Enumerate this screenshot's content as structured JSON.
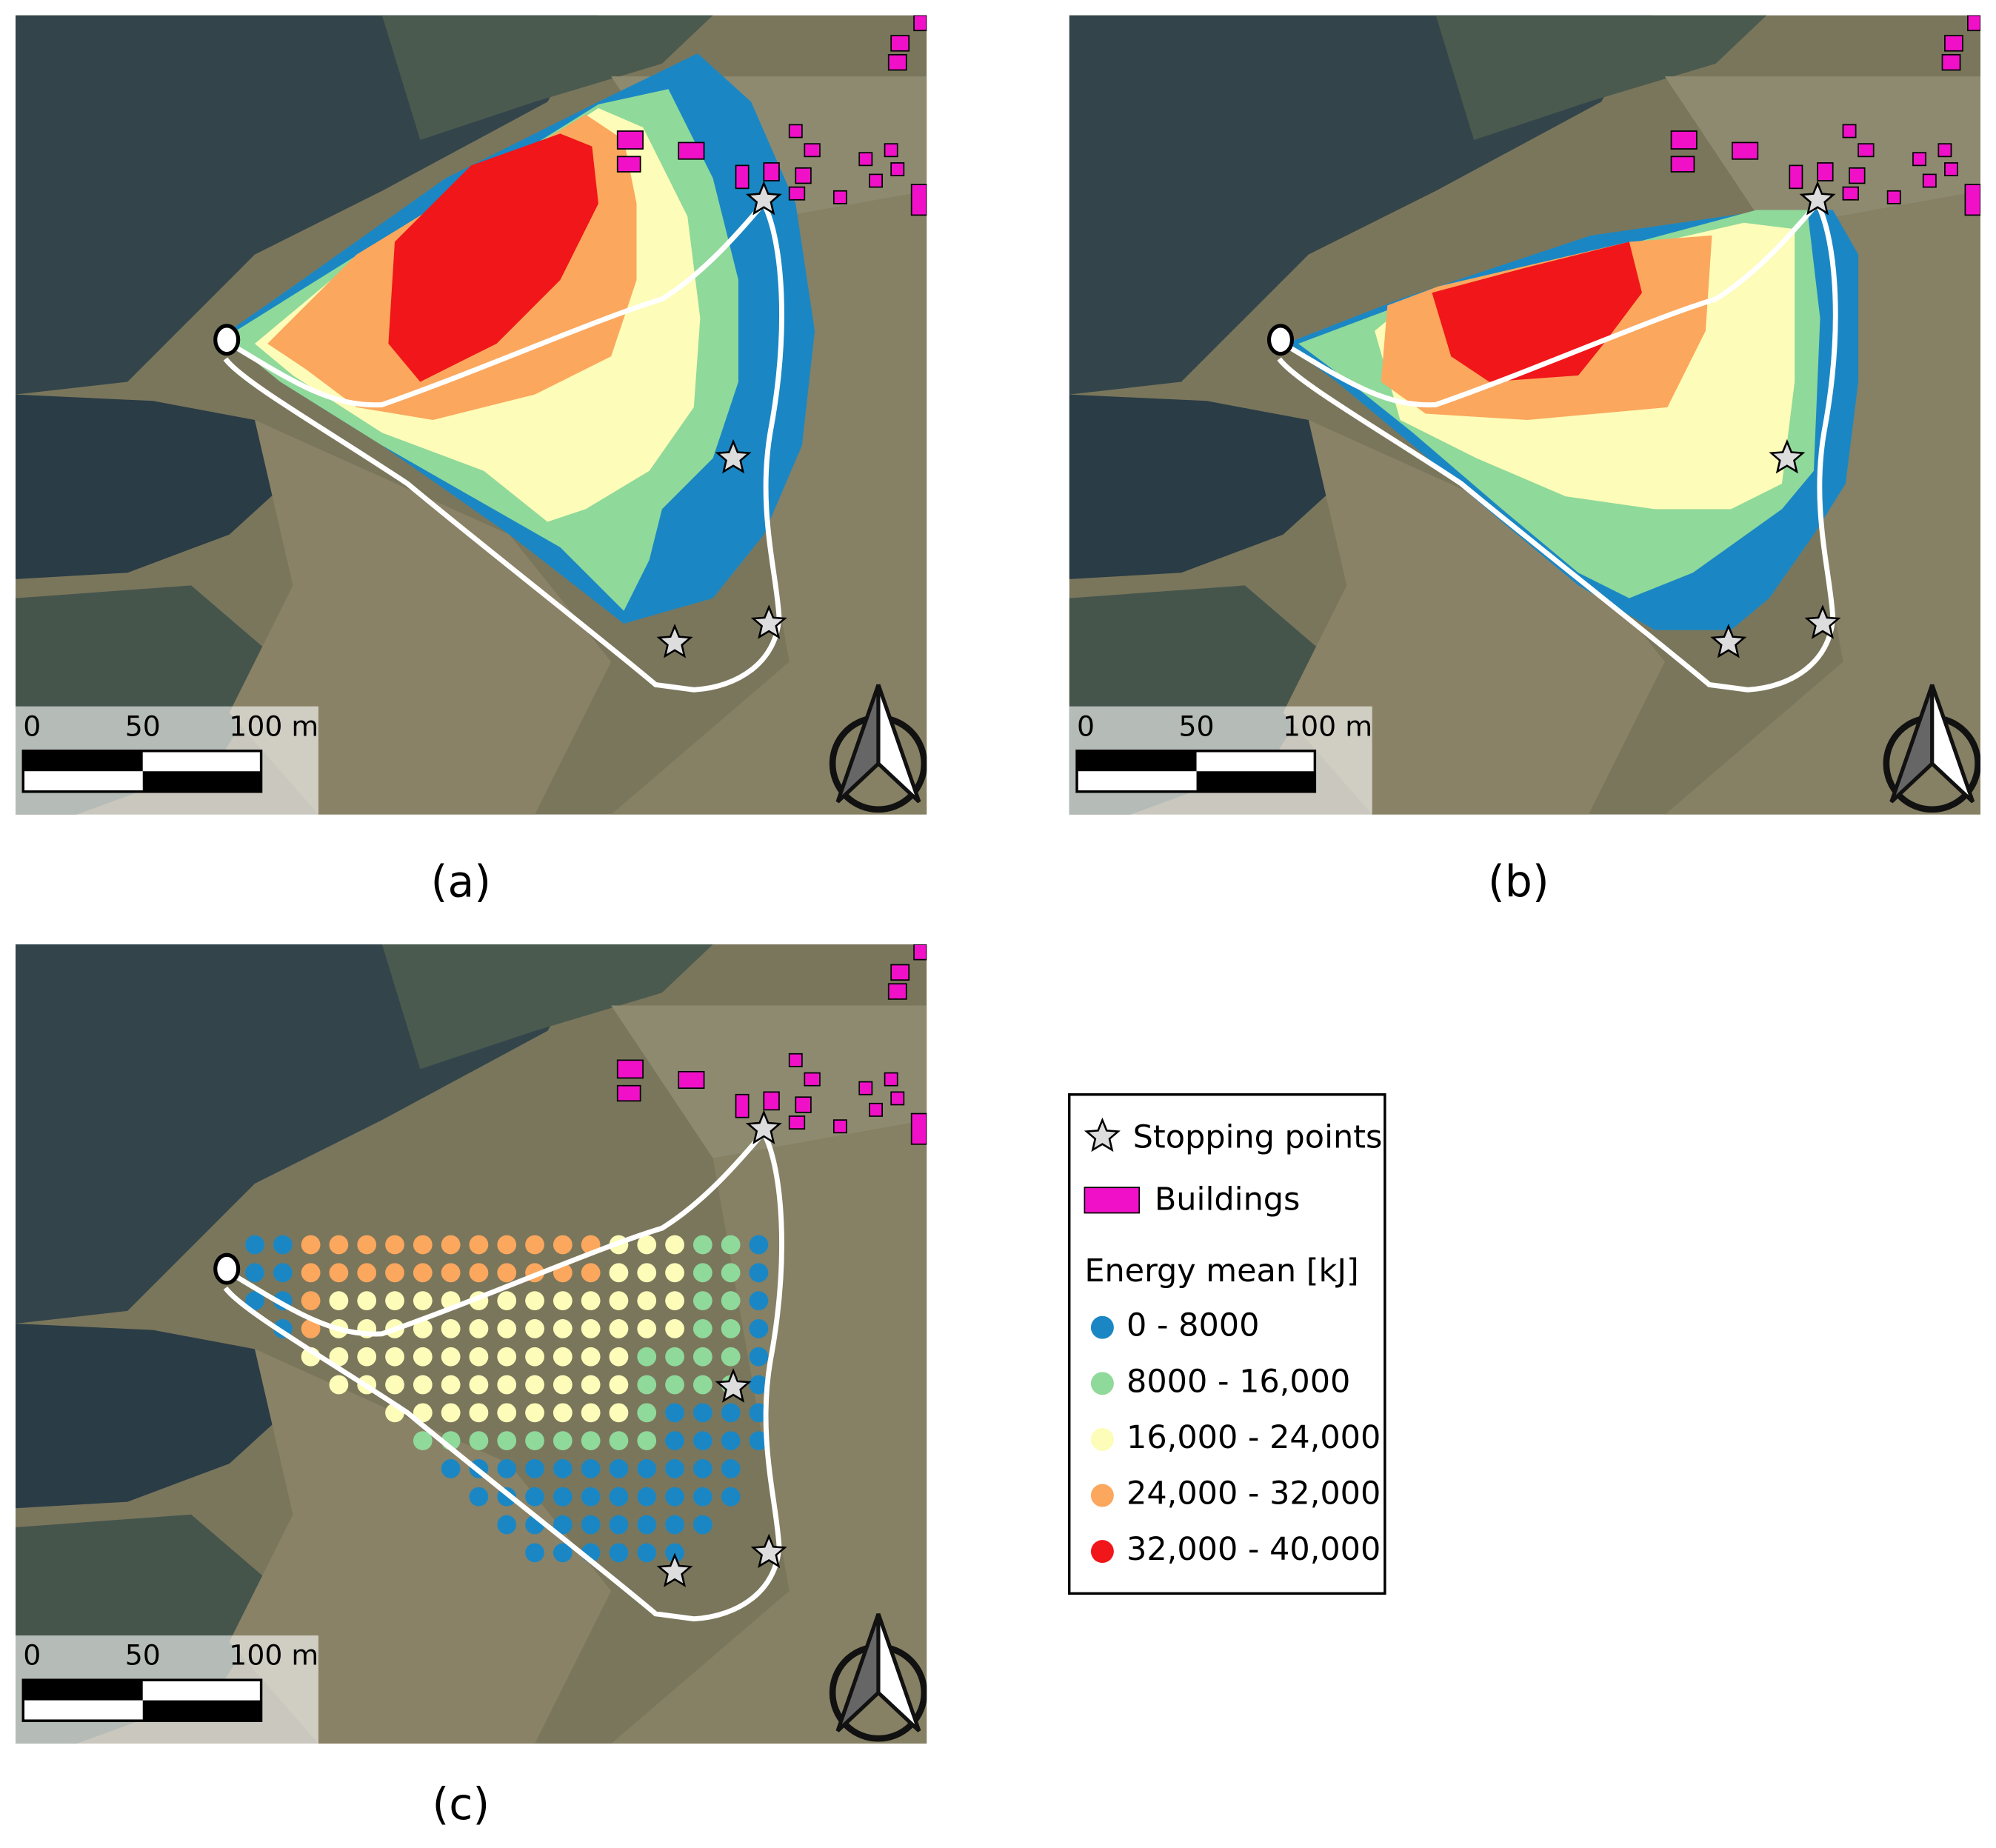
{
  "panels": [
    {
      "label": "(a)"
    },
    {
      "label": "(b)"
    },
    {
      "label": "(c)"
    }
  ],
  "scale_bar": {
    "ticks": [
      "0",
      "50",
      "100 m"
    ]
  },
  "legend": {
    "stopping_points": "Stopping points",
    "buildings": "Buildings",
    "buildings_color": "#f010c8",
    "energy_title": "Energy mean [kJ]",
    "classes": [
      {
        "label": "0 - 8000",
        "color": "#1a87c4"
      },
      {
        "label": "8000 - 16,000",
        "color": "#8fd99a"
      },
      {
        "label": "16,000 - 24,000",
        "color": "#fdfcb8"
      },
      {
        "label": "24,000 - 32,000",
        "color": "#fba75d"
      },
      {
        "label": "32,000 - 40,000",
        "color": "#f0161a"
      }
    ]
  }
}
